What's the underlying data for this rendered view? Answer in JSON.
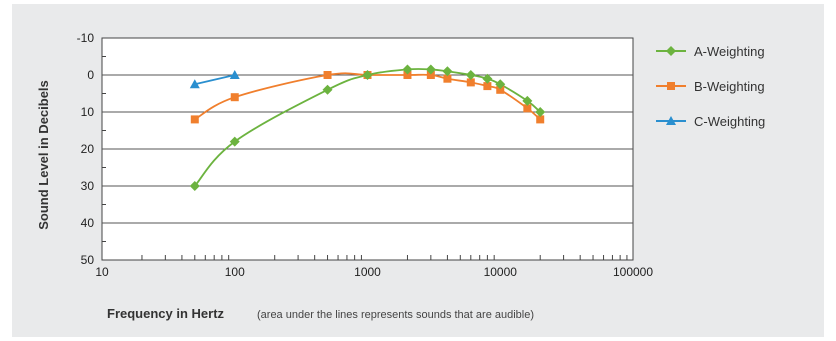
{
  "chart_data": {
    "type": "line",
    "xlabel": "Frequency in Hertz",
    "xlabel_note": "(area under the lines represents sounds that are audible)",
    "ylabel": "Sound Level in Decibels",
    "x_scale": "log",
    "xlim": [
      10,
      100000
    ],
    "ylim": [
      50,
      -10
    ],
    "y_inverted": true,
    "x_ticks": [
      "10",
      "100",
      "1000",
      "10000",
      "100000"
    ],
    "y_ticks": [
      "-10",
      "0",
      "10",
      "20",
      "30",
      "40",
      "50"
    ],
    "grid": "horizontal",
    "legend_position": "right",
    "series": [
      {
        "name": "A-Weighting",
        "color": "#6cb33f",
        "marker": "diamond",
        "x": [
          50,
          100,
          500,
          1000,
          2000,
          3000,
          4000,
          6000,
          8000,
          10000,
          16000,
          20000
        ],
        "y": [
          30,
          18,
          4,
          0,
          -1.5,
          -1.5,
          -1,
          0,
          1,
          2.5,
          7,
          10
        ]
      },
      {
        "name": "B-Weighting",
        "color": "#f07f2d",
        "marker": "square",
        "x": [
          50,
          100,
          500,
          1000,
          2000,
          3000,
          4000,
          6000,
          8000,
          10000,
          16000,
          20000
        ],
        "y": [
          12,
          6,
          0,
          0,
          0,
          0,
          1,
          2,
          3,
          4,
          9,
          12
        ]
      },
      {
        "name": "C-Weighting",
        "color": "#2a8fcf",
        "marker": "triangle",
        "x": [
          50,
          100
        ],
        "y": [
          2.5,
          0
        ]
      }
    ]
  }
}
